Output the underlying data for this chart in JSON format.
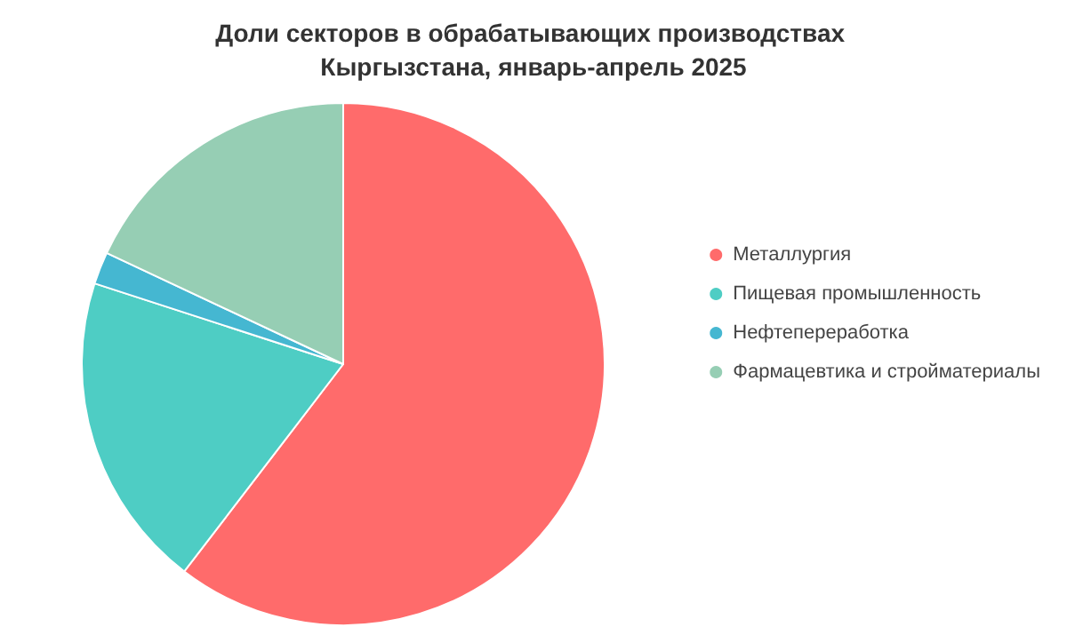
{
  "chart_data": {
    "type": "pie",
    "title": "Доли секторов в обрабатывающих производствах Кыргызстана, январь-апрель 2025",
    "categories": [
      "Металлургия",
      "Пищевая промышленность",
      "Нефтепереработка",
      "Фармацевтика и стройматериалы"
    ],
    "values": [
      60.4,
      19.6,
      2.0,
      18.0
    ],
    "colors": [
      "#ff6b6b",
      "#4ecdc4",
      "#45b7d1",
      "#96ceb4"
    ],
    "legend": "right"
  }
}
